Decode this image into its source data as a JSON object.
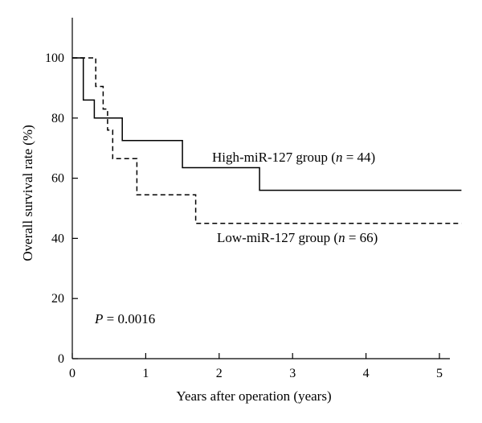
{
  "chart_data": {
    "type": "line",
    "subtype": "kaplan-meier step curve",
    "xlabel": "Years after operation (years)",
    "ylabel": "Overall survival rate (%)",
    "xlim": [
      0,
      5.5
    ],
    "ylim": [
      0,
      115
    ],
    "xticks": [
      0,
      1,
      2,
      3,
      4,
      5
    ],
    "yticks": [
      0,
      20,
      40,
      60,
      80,
      100
    ],
    "grid": false,
    "annotation": {
      "italic": "P",
      "rest": " = 0.0016"
    },
    "series": [
      {
        "name": "High-miR-127 group (n = 44)",
        "label_prefix": "High-miR-127 group (",
        "label_italic": "n",
        "label_suffix": " = 44)",
        "line_style": "solid",
        "color": "#000000",
        "x": [
          0,
          0.15,
          0.15,
          0.3,
          0.3,
          0.68,
          0.68,
          1.5,
          1.5,
          2.55,
          2.55,
          5.3
        ],
        "y": [
          100,
          100,
          86,
          86,
          80,
          80,
          72.5,
          72.5,
          63.5,
          63.5,
          56,
          56
        ]
      },
      {
        "name": "Low-miR-127 group (n = 66)",
        "label_prefix": "Low-miR-127 group (",
        "label_italic": "n",
        "label_suffix": " = 66)",
        "line_style": "dashed",
        "color": "#000000",
        "x": [
          0,
          0.32,
          0.32,
          0.42,
          0.42,
          0.48,
          0.48,
          0.55,
          0.55,
          0.88,
          0.88,
          1.68,
          1.68,
          5.3
        ],
        "y": [
          100,
          100,
          90.5,
          90.5,
          83,
          83,
          76,
          76,
          66.5,
          66.5,
          54.5,
          54.5,
          45,
          45
        ]
      }
    ]
  }
}
